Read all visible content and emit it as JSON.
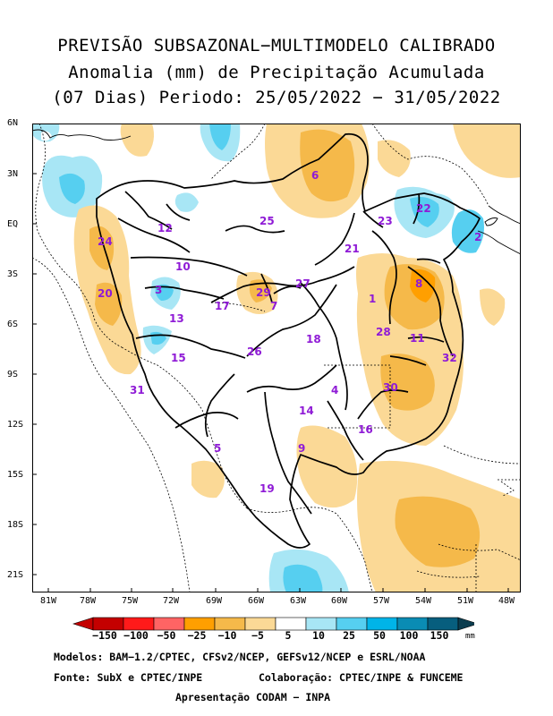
{
  "title": {
    "line1": "PREVISÃO SUBSAZONAL−MULTIMODELO CALIBRADO",
    "line2": "Anomalia (mm) de Precipitação Acumulada",
    "line3": "(07 Dias) Periodo: 25/05/2022 − 31/05/2022"
  },
  "axes": {
    "lat_labels": [
      "6N",
      "3N",
      "EQ",
      "3S",
      "6S",
      "9S",
      "12S",
      "15S",
      "18S",
      "21S"
    ],
    "lon_labels": [
      "81W",
      "78W",
      "75W",
      "72W",
      "69W",
      "66W",
      "63W",
      "60W",
      "57W",
      "54W",
      "51W",
      "48W"
    ]
  },
  "basins": [
    "1",
    "2",
    "3",
    "4",
    "5",
    "6",
    "7",
    "8",
    "9",
    "10",
    "11",
    "12",
    "13",
    "14",
    "15",
    "16",
    "17",
    "18",
    "19",
    "20",
    "21",
    "22",
    "23",
    "24",
    "25",
    "26",
    "27",
    "28",
    "29",
    "30",
    "31",
    "32"
  ],
  "colorbar": {
    "labels": [
      "−150",
      "−100",
      "−50",
      "−25",
      "−10",
      "−5",
      "5",
      "10",
      "25",
      "50",
      "100",
      "150"
    ],
    "unit": "mm",
    "colors": [
      "#c40000",
      "#ff1a1a",
      "#ff6464",
      "#ff9f00",
      "#f5b94a",
      "#fbd996",
      "#ffffff",
      "#a8e6f5",
      "#56cff0",
      "#00b4e8",
      "#0a8cb4",
      "#075e7e"
    ]
  },
  "credits": {
    "models": "Modelos: BAM−1.2/CPTEC, CFSv2/NCEP, GEFSv12/NCEP e ESRL/NOAA",
    "source": "Fonte: SubX e CPTEC/INPE",
    "collab": "Colaboração: CPTEC/INPE & FUNCEME",
    "presented": "Apresentação CODAM − INPA"
  }
}
